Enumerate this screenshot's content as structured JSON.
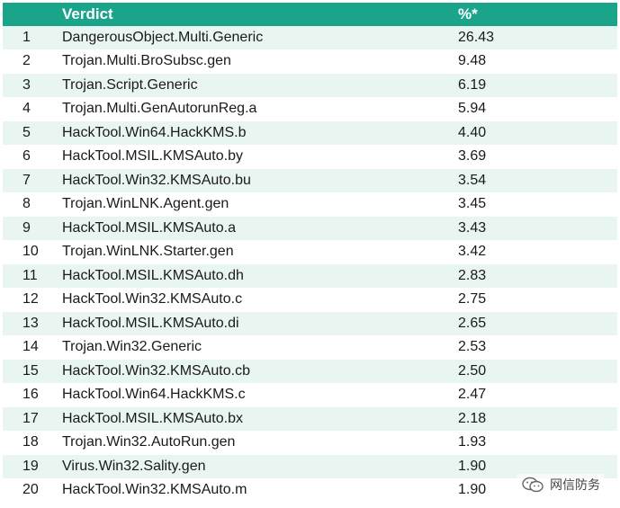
{
  "table": {
    "headers": {
      "rank": "",
      "verdict": "Verdict",
      "percent": "%*"
    },
    "rows": [
      {
        "rank": "1",
        "verdict": "DangerousObject.Multi.Generic",
        "percent": "26.43"
      },
      {
        "rank": "2",
        "verdict": "Trojan.Multi.BroSubsc.gen",
        "percent": "9.48"
      },
      {
        "rank": "3",
        "verdict": "Trojan.Script.Generic",
        "percent": "6.19"
      },
      {
        "rank": "4",
        "verdict": "Trojan.Multi.GenAutorunReg.a",
        "percent": "5.94"
      },
      {
        "rank": "5",
        "verdict": "HackTool.Win64.HackKMS.b",
        "percent": "4.40"
      },
      {
        "rank": "6",
        "verdict": "HackTool.MSIL.KMSAuto.by",
        "percent": "3.69"
      },
      {
        "rank": "7",
        "verdict": "HackTool.Win32.KMSAuto.bu",
        "percent": "3.54"
      },
      {
        "rank": "8",
        "verdict": "Trojan.WinLNK.Agent.gen",
        "percent": "3.45"
      },
      {
        "rank": "9",
        "verdict": "HackTool.MSIL.KMSAuto.a",
        "percent": "3.43"
      },
      {
        "rank": "10",
        "verdict": "Trojan.WinLNK.Starter.gen",
        "percent": "3.42"
      },
      {
        "rank": "11",
        "verdict": "HackTool.MSIL.KMSAuto.dh",
        "percent": "2.83"
      },
      {
        "rank": "12",
        "verdict": "HackTool.Win32.KMSAuto.c",
        "percent": "2.75"
      },
      {
        "rank": "13",
        "verdict": "HackTool.MSIL.KMSAuto.di",
        "percent": "2.65"
      },
      {
        "rank": "14",
        "verdict": "Trojan.Win32.Generic",
        "percent": "2.53"
      },
      {
        "rank": "15",
        "verdict": "HackTool.Win32.KMSAuto.cb",
        "percent": "2.50"
      },
      {
        "rank": "16",
        "verdict": "HackTool.Win64.HackKMS.c",
        "percent": "2.47"
      },
      {
        "rank": "17",
        "verdict": "HackTool.MSIL.KMSAuto.bx",
        "percent": "2.18"
      },
      {
        "rank": "18",
        "verdict": "Trojan.Win32.AutoRun.gen",
        "percent": "1.93"
      },
      {
        "rank": "19",
        "verdict": "Virus.Win32.Sality.gen",
        "percent": "1.90"
      },
      {
        "rank": "20",
        "verdict": "HackTool.Win32.KMSAuto.m",
        "percent": "1.90"
      }
    ]
  },
  "watermark": {
    "text": "网信防务",
    "icon": "wechat-icon"
  },
  "colors": {
    "header_bg": "#1aa58a",
    "stripe": "#e9f5f1"
  }
}
